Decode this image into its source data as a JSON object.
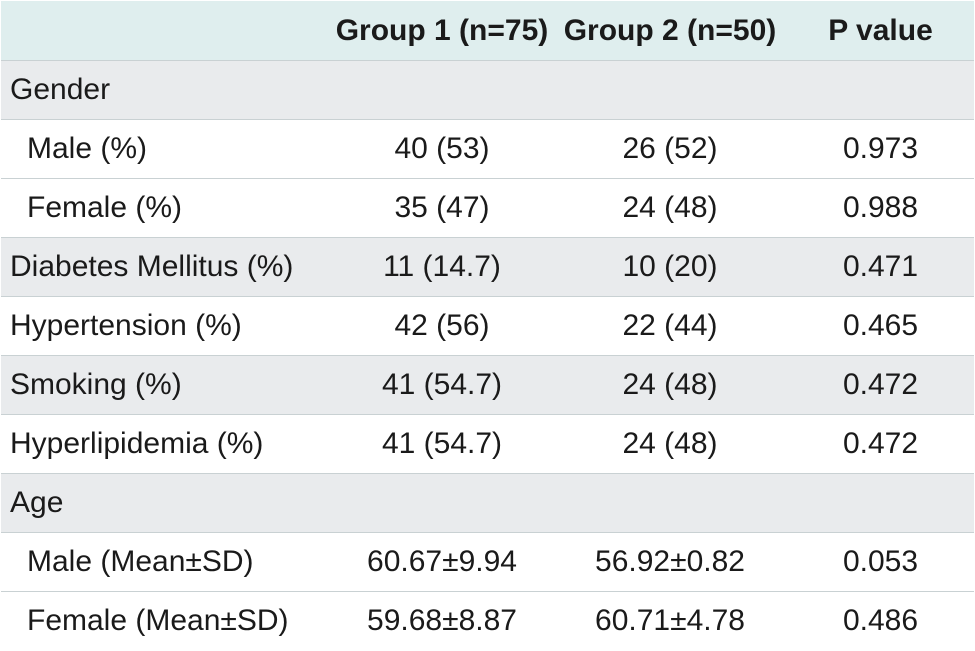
{
  "table": {
    "headers": [
      "",
      "Group 1 (n=75)",
      "Group 2 (n=50)",
      "P value"
    ],
    "rows": [
      {
        "label": "Gender",
        "g1": "",
        "g2": "",
        "p": ""
      },
      {
        "label": "Male (%)",
        "g1": "40 (53)",
        "g2": "26 (52)",
        "p": "0.973"
      },
      {
        "label": "Female (%)",
        "g1": "35 (47)",
        "g2": "24 (48)",
        "p": "0.988"
      },
      {
        "label": "Diabetes Mellitus (%)",
        "g1": "11 (14.7)",
        "g2": "10 (20)",
        "p": "0.471"
      },
      {
        "label": "Hypertension (%)",
        "g1": "42 (56)",
        "g2": "22 (44)",
        "p": "0.465"
      },
      {
        "label": "Smoking (%)",
        "g1": "41 (54.7)",
        "g2": "24 (48)",
        "p": "0.472"
      },
      {
        "label": "Hyperlipidemia (%)",
        "g1": "41 (54.7)",
        "g2": "24 (48)",
        "p": "0.472"
      },
      {
        "label": "Age",
        "g1": "",
        "g2": "",
        "p": ""
      },
      {
        "label": "Male (Mean±SD)",
        "g1": "60.67±9.94",
        "g2": "56.92±0.82",
        "p": "0.053"
      },
      {
        "label": "Female (Mean±SD)",
        "g1": "59.68±8.87",
        "g2": "60.71±4.78",
        "p": "0.486"
      }
    ]
  },
  "colors": {
    "header_bg": "#dfeeee",
    "shaded_row_bg": "#e9ebed",
    "white_row_bg": "#ffffff",
    "border": "#c9d1d3",
    "text": "#1a1a1a"
  }
}
